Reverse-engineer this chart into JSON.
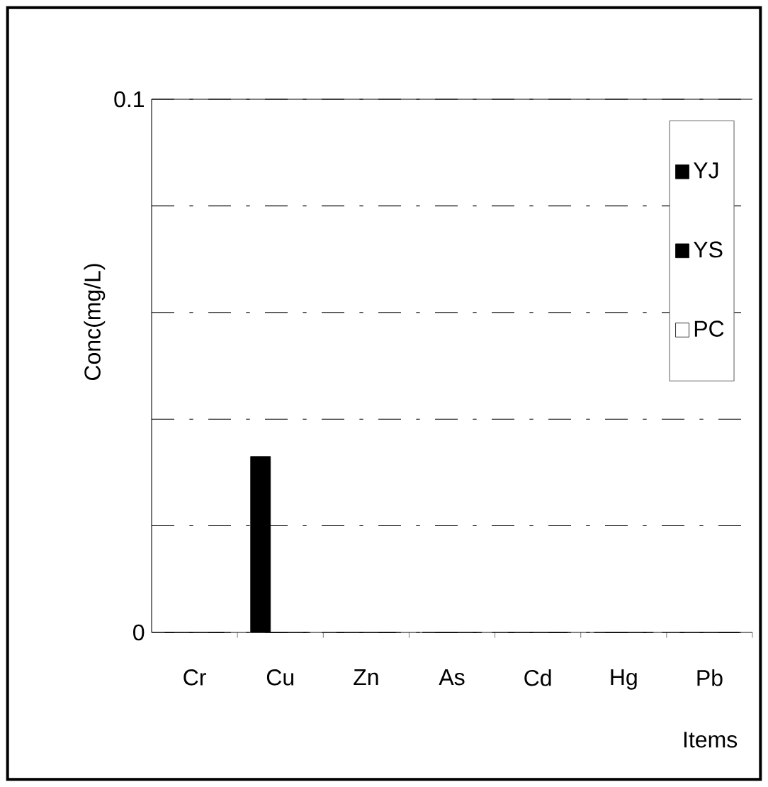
{
  "chart_data": {
    "type": "bar",
    "xlabel": "Items",
    "ylabel": "Conc(mg/L)",
    "categories": [
      "Cr",
      "Cu",
      "Zn",
      "As",
      "Cd",
      "Hg",
      "Pb"
    ],
    "series": [
      {
        "name": "YJ",
        "color": "#000000",
        "values": [
          0,
          0.033,
          0,
          0,
          0,
          0,
          0
        ]
      },
      {
        "name": "YS",
        "color": "#000000",
        "values": [
          0,
          0,
          0,
          0,
          0,
          0,
          0
        ]
      },
      {
        "name": "PC",
        "color": "#ffffff",
        "values": [
          0,
          0,
          0,
          0,
          0,
          0,
          0
        ]
      }
    ],
    "ylim": [
      0,
      0.1
    ],
    "yticks": [
      0,
      {
        "value": 0.02,
        "label": null
      },
      {
        "value": 0.04,
        "label": null
      },
      {
        "value": 0.06,
        "label": null
      },
      {
        "value": 0.08,
        "label": null
      },
      0.1
    ],
    "grid": "y",
    "legend": "top right"
  }
}
